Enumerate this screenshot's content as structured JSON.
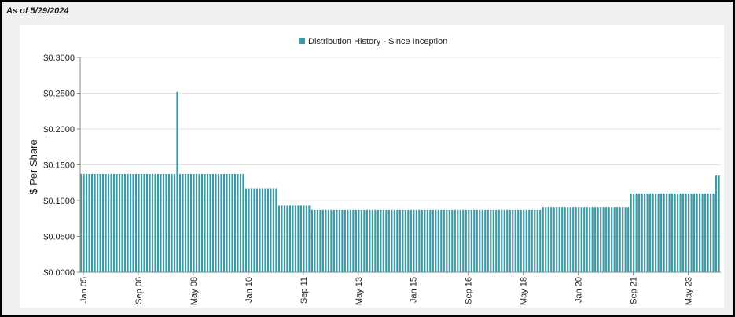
{
  "header": {
    "as_of": "As of 5/29/2024"
  },
  "chart_data": {
    "type": "bar",
    "legend": {
      "label": "Distribution History - Since Inception",
      "position": "top-center"
    },
    "series_color": "#3a9aa6",
    "ylabel": "$ Per Share",
    "ylim": [
      0,
      0.3
    ],
    "y_ticks": [
      "$0.0000",
      "$0.0500",
      "$0.1000",
      "$0.1500",
      "$0.2000",
      "$0.2500",
      "$0.3000"
    ],
    "x_ticks": [
      "Jan 05",
      "Sep 06",
      "May 08",
      "Jan 10",
      "Sep 11",
      "May 13",
      "Jan 15",
      "Sep 16",
      "May 18",
      "Jan 20",
      "Sep 21",
      "May 23"
    ],
    "grid": true,
    "start": "2005-01",
    "frequency": "monthly",
    "segments": [
      {
        "from": "2005-01",
        "to": "2009-12",
        "value": 0.1375
      },
      {
        "from": "2010-01",
        "to": "2010-12",
        "value": 0.117
      },
      {
        "from": "2011-01",
        "to": "2011-12",
        "value": 0.093
      },
      {
        "from": "2012-01",
        "to": "2018-12",
        "value": 0.087
      },
      {
        "from": "2019-01",
        "to": "2021-08",
        "value": 0.091
      },
      {
        "from": "2021-09",
        "to": "2024-03",
        "value": 0.11
      },
      {
        "from": "2024-04",
        "to": "2024-05",
        "value": 0.135
      }
    ],
    "spikes": [
      {
        "date": "2007-12",
        "value": 0.252
      }
    ]
  }
}
